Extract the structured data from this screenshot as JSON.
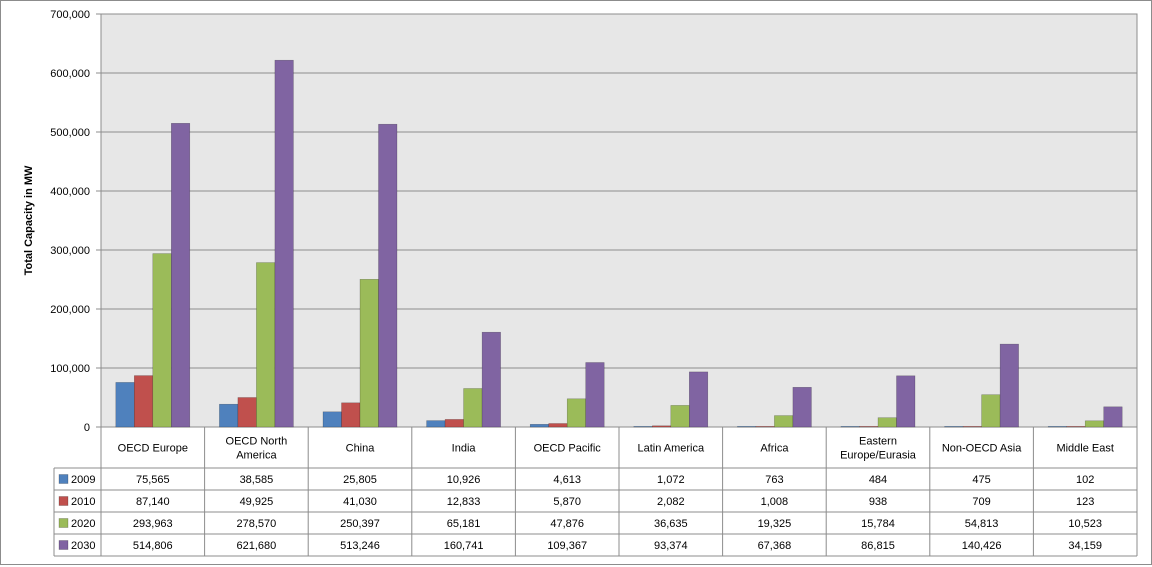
{
  "chart_data": {
    "type": "bar",
    "ylabel": "Total Capacity in MW",
    "ylim": [
      0,
      700000
    ],
    "yticks": [
      "0",
      "100,000",
      "200,000",
      "300,000",
      "400,000",
      "500,000",
      "600,000",
      "700,000"
    ],
    "grid": true,
    "legend": "data-table",
    "categories": [
      [
        "OECD Europe"
      ],
      [
        "OECD North",
        "America"
      ],
      [
        "China"
      ],
      [
        "India"
      ],
      [
        "OECD Pacific"
      ],
      [
        "Latin America"
      ],
      [
        "Africa"
      ],
      [
        "Eastern",
        "Europe/Eurasia"
      ],
      [
        "Non-OECD Asia"
      ],
      [
        "Middle East"
      ]
    ],
    "series": [
      {
        "name": "2009",
        "color": "#4f81bd",
        "values": [
          75565,
          38585,
          25805,
          10926,
          4613,
          1072,
          763,
          484,
          475,
          102
        ],
        "labels": [
          "75,565",
          "38,585",
          "25,805",
          "10,926",
          "4,613",
          "1,072",
          "763",
          "484",
          "475",
          "102"
        ]
      },
      {
        "name": "2010",
        "color": "#c0504d",
        "values": [
          87140,
          49925,
          41030,
          12833,
          5870,
          2082,
          1008,
          938,
          709,
          123
        ],
        "labels": [
          "87,140",
          "49,925",
          "41,030",
          "12,833",
          "5,870",
          "2,082",
          "1,008",
          "938",
          "709",
          "123"
        ]
      },
      {
        "name": "2020",
        "color": "#9bbb59",
        "values": [
          293963,
          278570,
          250397,
          65181,
          47876,
          36635,
          19325,
          15784,
          54813,
          10523
        ],
        "labels": [
          "293,963",
          "278,570",
          "250,397",
          "65,181",
          "47,876",
          "36,635",
          "19,325",
          "15,784",
          "54,813",
          "10,523"
        ]
      },
      {
        "name": "2030",
        "color": "#8064a2",
        "values": [
          514806,
          621680,
          513246,
          160741,
          109367,
          93374,
          67368,
          86815,
          140426,
          34159
        ],
        "labels": [
          "514,806",
          "621,680",
          "513,246",
          "160,741",
          "109,367",
          "93,374",
          "67,368",
          "86,815",
          "140,426",
          "34,159"
        ]
      }
    ]
  }
}
